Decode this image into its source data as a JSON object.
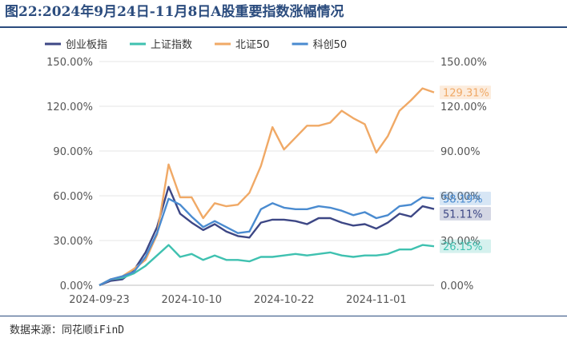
{
  "title": "图22:2024年9月24日-11月8日A股重要指数涨幅情况",
  "source": "数据来源：同花顺iFinD",
  "chart_data": {
    "type": "line",
    "x": [
      "2024-09-23",
      "2024-09-24",
      "2024-09-25",
      "2024-09-26",
      "2024-09-27",
      "2024-09-30",
      "2024-10-08",
      "2024-10-09",
      "2024-10-10",
      "2024-10-11",
      "2024-10-14",
      "2024-10-15",
      "2024-10-16",
      "2024-10-17",
      "2024-10-18",
      "2024-10-21",
      "2024-10-22",
      "2024-10-23",
      "2024-10-24",
      "2024-10-25",
      "2024-10-28",
      "2024-10-29",
      "2024-10-30",
      "2024-10-31",
      "2024-11-01",
      "2024-11-04",
      "2024-11-05",
      "2024-11-06",
      "2024-11-07",
      "2024-11-08"
    ],
    "x_ticks": [
      "2024-09-23",
      "2024-10-10",
      "2024-10-22",
      "2024-11-01"
    ],
    "y_ticks_left": [
      "0.00%",
      "30.00%",
      "60.00%",
      "90.00%",
      "120.00%",
      "150.00%"
    ],
    "y_ticks_right": [
      "0.00%",
      "30.00%",
      "60.00%",
      "90.00%",
      "120.00%",
      "150.00%"
    ],
    "ylim": [
      0,
      150
    ],
    "grid": true,
    "legend_position": "top",
    "series": [
      {
        "name": "创业板指",
        "color": "#3d4785",
        "values": [
          0,
          3,
          4,
          10,
          22,
          39,
          66,
          48,
          42,
          37,
          41,
          36,
          33,
          32,
          42,
          44,
          44,
          43,
          41,
          45,
          45,
          42,
          40,
          41,
          38,
          42,
          48,
          46,
          53,
          51.11
        ],
        "end_label": "51.11%"
      },
      {
        "name": "上证指数",
        "color": "#3fc1b0",
        "values": [
          0,
          4,
          5,
          8,
          13,
          20,
          27,
          19,
          21,
          17,
          20,
          17,
          17,
          16,
          19,
          19,
          20,
          21,
          20,
          21,
          22,
          20,
          19,
          20,
          20,
          21,
          24,
          24,
          27,
          26.15
        ],
        "end_label": "26.15%"
      },
      {
        "name": "北证50",
        "color": "#f0a966",
        "values": [
          0,
          4,
          6,
          11,
          17,
          34,
          81,
          59,
          59,
          45,
          55,
          53,
          54,
          62,
          80,
          106,
          91,
          99,
          107,
          107,
          109,
          117,
          112,
          108,
          89,
          100,
          117,
          124,
          132,
          129.31
        ],
        "end_label": "129.31%"
      },
      {
        "name": "科创50",
        "color": "#4a8bd0",
        "values": [
          0,
          4,
          6,
          9,
          19,
          35,
          58,
          54,
          46,
          39,
          43,
          39,
          35,
          36,
          51,
          55,
          52,
          51,
          51,
          53,
          52,
          50,
          47,
          49,
          45,
          47,
          53,
          54,
          59,
          58.19
        ],
        "end_label": "58.19%"
      }
    ],
    "overlap_right_tick": "30.00%"
  }
}
